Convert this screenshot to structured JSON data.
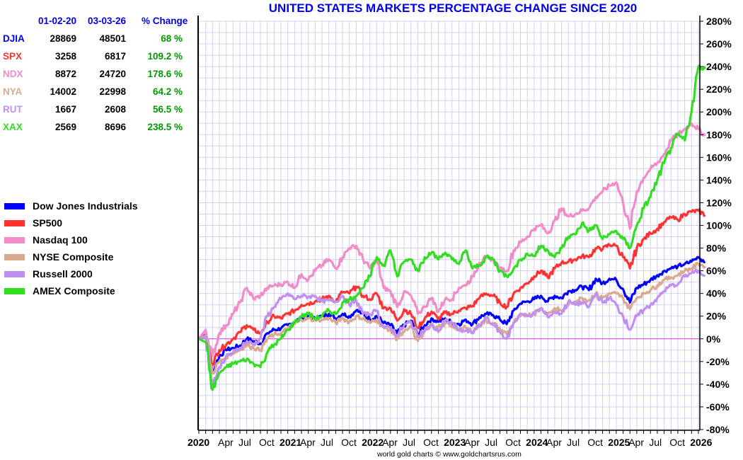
{
  "chart_data": {
    "type": "line",
    "title": "UNITED STATES MARKETS PERCENTAGE CHANGE SINCE 2020",
    "xlabel": "",
    "ylabel": "",
    "ylim": [
      -80,
      280
    ],
    "yticks": [
      -80,
      -60,
      -40,
      -20,
      0,
      20,
      40,
      60,
      80,
      100,
      120,
      140,
      160,
      180,
      200,
      220,
      240,
      260,
      280
    ],
    "ytick_labels": [
      "-80%",
      "-60%",
      "-40%",
      "-20%",
      "0%",
      "20%",
      "40%",
      "60%",
      "80%",
      "100%",
      "120%",
      "140%",
      "160%",
      "180%",
      "200%",
      "220%",
      "240%",
      "260%",
      "280%"
    ],
    "x_start": "2020-01",
    "x_end": "2026-03",
    "x_unit": "month",
    "xtick_labels": [
      {
        "label": "2020",
        "month": 0,
        "bold": true
      },
      {
        "label": "Apr",
        "month": 3,
        "bold": false
      },
      {
        "label": "Jul",
        "month": 6,
        "bold": false
      },
      {
        "label": "Oct",
        "month": 9,
        "bold": false
      },
      {
        "label": "2021",
        "month": 12,
        "bold": true
      },
      {
        "label": "Apr",
        "month": 15,
        "bold": false
      },
      {
        "label": "Jul",
        "month": 18,
        "bold": false
      },
      {
        "label": "Oct",
        "month": 21,
        "bold": false
      },
      {
        "label": "2022",
        "month": 24,
        "bold": true
      },
      {
        "label": "Apr",
        "month": 27,
        "bold": false
      },
      {
        "label": "Jul",
        "month": 30,
        "bold": false
      },
      {
        "label": "Oct",
        "month": 33,
        "bold": false
      },
      {
        "label": "2023",
        "month": 36,
        "bold": true
      },
      {
        "label": "Apr",
        "month": 39,
        "bold": false
      },
      {
        "label": "Jul",
        "month": 42,
        "bold": false
      },
      {
        "label": "Oct",
        "month": 45,
        "bold": false
      },
      {
        "label": "2024",
        "month": 48,
        "bold": true
      },
      {
        "label": "Apr",
        "month": 51,
        "bold": false
      },
      {
        "label": "Jul",
        "month": 54,
        "bold": false
      },
      {
        "label": "Oct",
        "month": 57,
        "bold": false
      },
      {
        "label": "2025",
        "month": 60,
        "bold": true
      },
      {
        "label": "Apr",
        "month": 63,
        "bold": false
      },
      {
        "label": "Jul",
        "month": 66,
        "bold": false
      },
      {
        "label": "Oct",
        "month": 69,
        "bold": false
      },
      {
        "label": "2026",
        "month": 72,
        "bold": true
      }
    ],
    "grid": true,
    "legend_position": "left",
    "series": [
      {
        "name": "Dow Jones Industrials",
        "symbol": "DJIA",
        "color": "#0000ff",
        "values": [
          0,
          2,
          -30,
          -15,
          -10,
          -8,
          -6,
          0,
          -2,
          -4,
          5,
          8,
          9,
          12,
          15,
          18,
          19,
          18,
          20,
          22,
          18,
          22,
          20,
          25,
          22,
          17,
          20,
          14,
          12,
          5,
          12,
          16,
          3,
          12,
          18,
          15,
          18,
          14,
          13,
          17,
          13,
          19,
          22,
          21,
          17,
          13,
          25,
          31,
          33,
          35,
          38,
          33,
          38,
          36,
          42,
          43,
          46,
          43,
          53,
          49,
          53,
          52,
          44,
          32,
          45,
          48,
          52,
          56,
          60,
          62,
          64,
          66,
          68,
          72,
          68
        ]
      },
      {
        "name": "SP500",
        "symbol": "SPX",
        "color": "#ff3333",
        "values": [
          0,
          4,
          -22,
          -10,
          -5,
          0,
          6,
          12,
          8,
          5,
          15,
          20,
          18,
          22,
          25,
          30,
          31,
          33,
          35,
          38,
          33,
          41,
          40,
          46,
          38,
          35,
          40,
          27,
          27,
          16,
          26,
          22,
          10,
          18,
          24,
          17,
          23,
          22,
          25,
          27,
          29,
          36,
          40,
          38,
          32,
          28,
          40,
          45,
          49,
          55,
          60,
          54,
          62,
          67,
          68,
          70,
          73,
          72,
          80,
          79,
          83,
          82,
          72,
          62,
          80,
          88,
          93,
          97,
          103,
          107,
          105,
          110,
          112,
          113,
          109
        ]
      },
      {
        "name": "Nasdaq 100",
        "symbol": "NDX",
        "color": "#f08cc8",
        "values": [
          0,
          8,
          -15,
          5,
          12,
          22,
          32,
          45,
          35,
          38,
          45,
          47,
          48,
          50,
          45,
          57,
          52,
          60,
          65,
          70,
          62,
          72,
          80,
          82,
          70,
          62,
          70,
          45,
          42,
          28,
          42,
          38,
          22,
          28,
          36,
          24,
          35,
          35,
          45,
          47,
          55,
          67,
          72,
          70,
          62,
          60,
          78,
          85,
          90,
          97,
          100,
          93,
          104,
          115,
          108,
          110,
          113,
          115,
          125,
          130,
          135,
          138,
          120,
          97,
          130,
          142,
          150,
          155,
          163,
          175,
          180,
          185,
          190,
          185,
          179
        ]
      },
      {
        "name": "NYSE Composite",
        "symbol": "NYA",
        "color": "#d9aa90",
        "values": [
          0,
          2,
          -30,
          -20,
          -16,
          -12,
          -10,
          -5,
          -8,
          -10,
          0,
          4,
          5,
          9,
          13,
          17,
          18,
          16,
          17,
          18,
          14,
          18,
          15,
          20,
          18,
          14,
          17,
          10,
          8,
          0,
          6,
          10,
          -2,
          6,
          13,
          10,
          14,
          10,
          8,
          10,
          6,
          12,
          16,
          14,
          9,
          4,
          14,
          20,
          21,
          22,
          27,
          22,
          27,
          25,
          30,
          33,
          36,
          34,
          40,
          36,
          40,
          40,
          36,
          26,
          36,
          40,
          43,
          47,
          52,
          54,
          56,
          60,
          62,
          66,
          64
        ]
      },
      {
        "name": "Russell 2000",
        "symbol": "RUT",
        "color": "#c090f0",
        "values": [
          0,
          3,
          -40,
          -25,
          -15,
          -12,
          -8,
          -2,
          -5,
          0,
          20,
          28,
          35,
          40,
          35,
          38,
          37,
          38,
          33,
          34,
          33,
          38,
          30,
          34,
          22,
          22,
          25,
          10,
          10,
          3,
          12,
          15,
          3,
          8,
          12,
          6,
          16,
          14,
          8,
          7,
          5,
          12,
          18,
          12,
          6,
          0,
          14,
          22,
          20,
          22,
          27,
          19,
          24,
          22,
          33,
          30,
          32,
          28,
          40,
          32,
          36,
          30,
          20,
          8,
          20,
          25,
          30,
          36,
          42,
          47,
          48,
          55,
          58,
          60,
          56
        ]
      },
      {
        "name": "AMEX Composite",
        "symbol": "XAX",
        "color": "#33dd22",
        "values": [
          0,
          -3,
          -45,
          -30,
          -25,
          -22,
          -20,
          -18,
          -22,
          -25,
          -12,
          -5,
          0,
          8,
          14,
          20,
          22,
          18,
          20,
          25,
          22,
          32,
          35,
          38,
          45,
          55,
          72,
          65,
          78,
          55,
          68,
          70,
          60,
          72,
          76,
          70,
          76,
          70,
          66,
          78,
          62,
          65,
          72,
          70,
          60,
          55,
          62,
          70,
          75,
          73,
          82,
          78,
          72,
          80,
          90,
          92,
          102,
          95,
          100,
          88,
          92,
          95,
          88,
          80,
          100,
          115,
          125,
          140,
          155,
          168,
          180,
          175,
          200,
          240,
          238
        ]
      }
    ]
  },
  "stats_table": {
    "headers": [
      "01-02-20",
      "03-03-26",
      "% Change"
    ],
    "rows": [
      {
        "symbol": "DJIA",
        "start": "28869",
        "end": "48501",
        "change": "68 %",
        "color": "#0000ee"
      },
      {
        "symbol": "SPX",
        "start": "3258",
        "end": "6817",
        "change": "109.2 %",
        "color": "#ff3333"
      },
      {
        "symbol": "NDX",
        "start": "8872",
        "end": "24720",
        "change": "178.6 %",
        "color": "#f08cc8"
      },
      {
        "symbol": "NYA",
        "start": "14002",
        "end": "22998",
        "change": "64.2 %",
        "color": "#d9aa90"
      },
      {
        "symbol": "RUT",
        "start": "1667",
        "end": "2608",
        "change": "56.5 %",
        "color": "#c090f0"
      },
      {
        "symbol": "XAX",
        "start": "2569",
        "end": "8696",
        "change": "238.5 %",
        "color": "#33dd22"
      }
    ]
  },
  "footer": "world gold charts © www.goldchartsrus.com",
  "colors": {
    "title": "#0000ee",
    "grid": "#d0d0ee",
    "zero_line": "#dd44dd",
    "positive_change": "#009900"
  }
}
